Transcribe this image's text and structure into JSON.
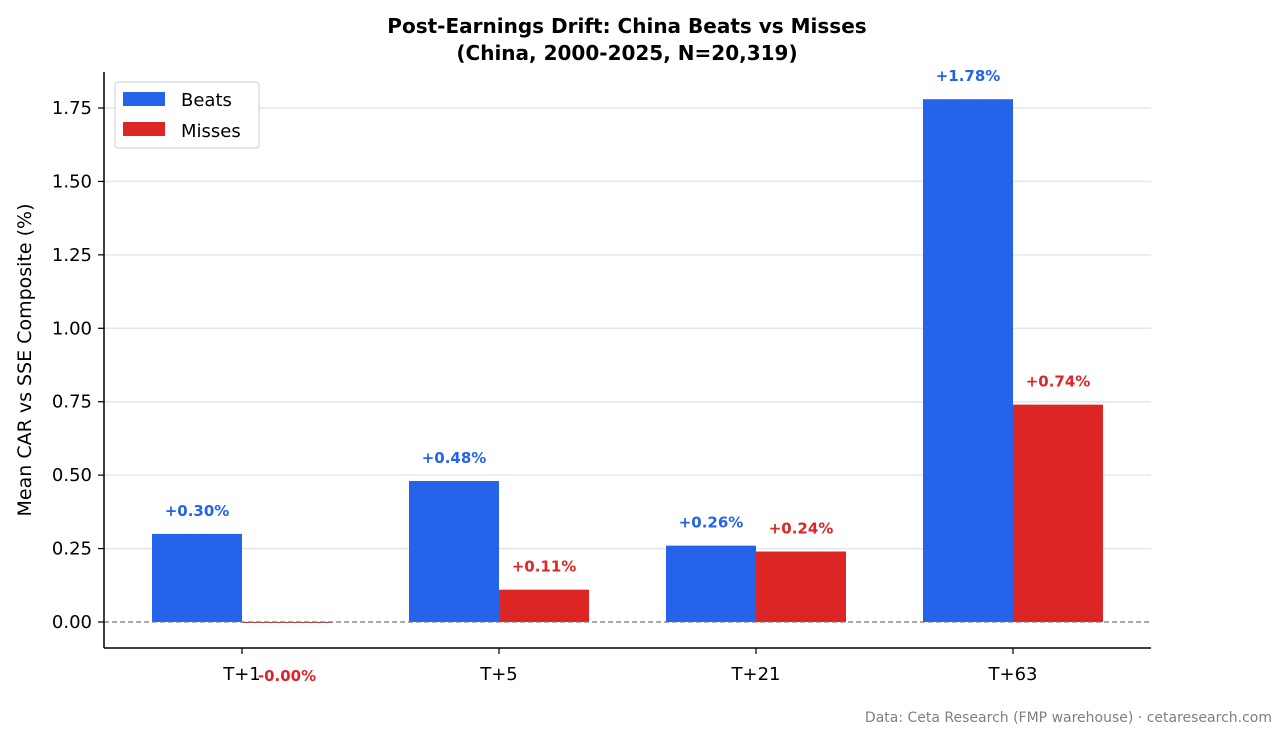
{
  "chart_data": {
    "type": "bar",
    "title_line1": "Post-Earnings Drift: China Beats vs Misses",
    "title_line2": "(China, 2000-2025, N=20,319)",
    "xlabel": "",
    "ylabel": "Mean CAR vs SSE Composite (%)",
    "categories": [
      "T+1",
      "T+5",
      "T+21",
      "T+63"
    ],
    "series": [
      {
        "name": "Beats",
        "color": "#2563eb",
        "values": [
          0.3,
          0.48,
          0.26,
          1.78
        ],
        "labels": [
          "+0.30%",
          "+0.48%",
          "+0.26%",
          "+1.78%"
        ]
      },
      {
        "name": "Misses",
        "color": "#dc2626",
        "values": [
          -0.002,
          0.11,
          0.24,
          0.74
        ],
        "labels": [
          "-0.00%",
          "+0.11%",
          "+0.24%",
          "+0.74%"
        ]
      }
    ],
    "ylim": [
      -0.09,
      1.87
    ],
    "yticks": [
      "0.00",
      "0.25",
      "0.50",
      "0.75",
      "1.00",
      "1.25",
      "1.50",
      "1.75"
    ],
    "ytick_values": [
      0,
      0.25,
      0.5,
      0.75,
      1.0,
      1.25,
      1.5,
      1.75
    ],
    "grid": "horizontal",
    "zero_line": "dashed",
    "legend": "top-left"
  },
  "footer": "Data: Ceta Research (FMP warehouse) · cetaresearch.com"
}
